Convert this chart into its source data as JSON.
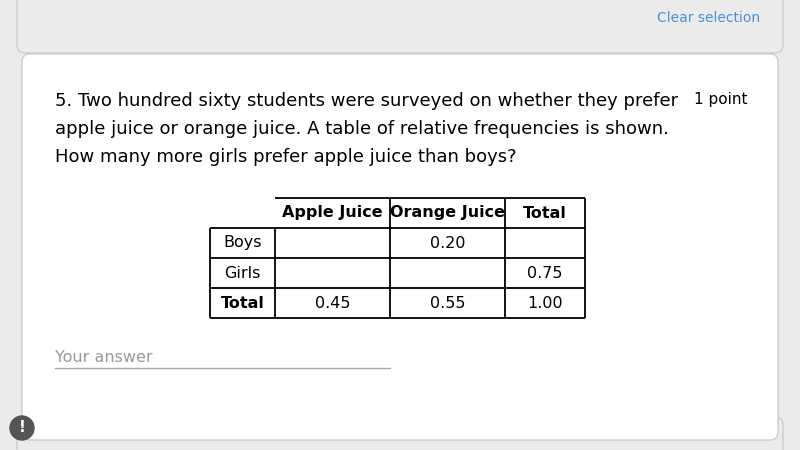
{
  "question_number": "5.",
  "question_text_line1": "Two hundred sixty students were surveyed on whether they prefer",
  "question_text_line2": "apple juice or orange juice. A table of relative frequencies is shown.",
  "question_text_line3": "How many more girls prefer apple juice than boys?",
  "points_label": "1 point",
  "col_headers": [
    "Apple Juice",
    "Orange Juice",
    "Total"
  ],
  "row_headers": [
    "Boys",
    "Girls",
    "Total"
  ],
  "table_data": [
    [
      "",
      "0.20",
      ""
    ],
    [
      "",
      "",
      "0.75"
    ],
    [
      "0.45",
      "0.55",
      "1.00"
    ]
  ],
  "your_answer_label": "Your answer",
  "bg_color": "#ebebeb",
  "card_color": "#ffffff",
  "text_color": "#000000",
  "font_size_question": 13.0,
  "font_size_table": 11.5,
  "font_size_answer": 11.5,
  "font_size_points": 11.0,
  "clear_selection_color": "#4a90d9",
  "answer_line_color": "#aaaaaa",
  "border_color": "#cccccc"
}
